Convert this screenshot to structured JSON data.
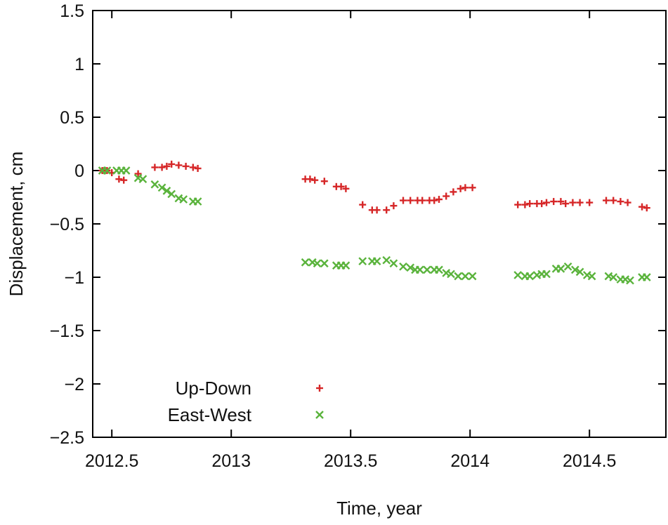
{
  "chart_data": {
    "type": "scatter",
    "title": "",
    "xlabel": "Time, year",
    "ylabel": "Displacement, cm",
    "xlim": [
      2012.42,
      2014.82
    ],
    "ylim": [
      -2.5,
      1.5
    ],
    "x_ticks": [
      2012.5,
      2013,
      2013.5,
      2014,
      2014.5
    ],
    "x_tick_labels": [
      "2012.5",
      "2013",
      "2013.5",
      "2014",
      "2014.5"
    ],
    "y_ticks": [
      1.5,
      1,
      0.5,
      0,
      -0.5,
      -1,
      -1.5,
      -2,
      -2.5
    ],
    "y_tick_labels": [
      "1.5",
      "1",
      "0.5",
      "0",
      "−0.5",
      "−1",
      "−1.5",
      "−2",
      "−2.5"
    ],
    "grid": false,
    "legend_position": "bottom-left",
    "series": [
      {
        "name": "Up-Down",
        "marker": "plus",
        "color": "#d62728",
        "points": [
          [
            2012.46,
            0.0
          ],
          [
            2012.48,
            0.0
          ],
          [
            2012.5,
            -0.02
          ],
          [
            2012.53,
            -0.08
          ],
          [
            2012.55,
            -0.09
          ],
          [
            2012.61,
            -0.03
          ],
          [
            2012.68,
            0.03
          ],
          [
            2012.71,
            0.03
          ],
          [
            2012.73,
            0.04
          ],
          [
            2012.75,
            0.06
          ],
          [
            2012.78,
            0.05
          ],
          [
            2012.81,
            0.04
          ],
          [
            2012.84,
            0.03
          ],
          [
            2012.86,
            0.02
          ],
          [
            2013.31,
            -0.08
          ],
          [
            2013.33,
            -0.08
          ],
          [
            2013.35,
            -0.09
          ],
          [
            2013.39,
            -0.1
          ],
          [
            2013.44,
            -0.15
          ],
          [
            2013.46,
            -0.15
          ],
          [
            2013.48,
            -0.17
          ],
          [
            2013.55,
            -0.32
          ],
          [
            2013.59,
            -0.37
          ],
          [
            2013.61,
            -0.37
          ],
          [
            2013.65,
            -0.37
          ],
          [
            2013.68,
            -0.33
          ],
          [
            2013.72,
            -0.28
          ],
          [
            2013.75,
            -0.28
          ],
          [
            2013.78,
            -0.28
          ],
          [
            2013.8,
            -0.28
          ],
          [
            2013.83,
            -0.28
          ],
          [
            2013.85,
            -0.28
          ],
          [
            2013.87,
            -0.27
          ],
          [
            2013.9,
            -0.24
          ],
          [
            2013.93,
            -0.2
          ],
          [
            2013.96,
            -0.17
          ],
          [
            2013.98,
            -0.16
          ],
          [
            2014.01,
            -0.16
          ],
          [
            2014.2,
            -0.32
          ],
          [
            2014.23,
            -0.32
          ],
          [
            2014.25,
            -0.31
          ],
          [
            2014.28,
            -0.31
          ],
          [
            2014.3,
            -0.31
          ],
          [
            2014.32,
            -0.3
          ],
          [
            2014.35,
            -0.29
          ],
          [
            2014.38,
            -0.29
          ],
          [
            2014.4,
            -0.31
          ],
          [
            2014.43,
            -0.3
          ],
          [
            2014.46,
            -0.3
          ],
          [
            2014.5,
            -0.3
          ],
          [
            2014.57,
            -0.28
          ],
          [
            2014.6,
            -0.28
          ],
          [
            2014.63,
            -0.29
          ],
          [
            2014.66,
            -0.3
          ],
          [
            2014.72,
            -0.34
          ],
          [
            2014.74,
            -0.35
          ]
        ]
      },
      {
        "name": "East-West",
        "marker": "cross",
        "color": "#5ab33c",
        "points": [
          [
            2012.46,
            0.0
          ],
          [
            2012.48,
            0.0
          ],
          [
            2012.52,
            0.0
          ],
          [
            2012.54,
            0.0
          ],
          [
            2012.56,
            0.0
          ],
          [
            2012.61,
            -0.07
          ],
          [
            2012.63,
            -0.08
          ],
          [
            2012.68,
            -0.13
          ],
          [
            2012.71,
            -0.16
          ],
          [
            2012.73,
            -0.19
          ],
          [
            2012.75,
            -0.22
          ],
          [
            2012.78,
            -0.26
          ],
          [
            2012.8,
            -0.27
          ],
          [
            2012.84,
            -0.29
          ],
          [
            2012.86,
            -0.29
          ],
          [
            2013.31,
            -0.86
          ],
          [
            2013.34,
            -0.86
          ],
          [
            2013.36,
            -0.87
          ],
          [
            2013.39,
            -0.87
          ],
          [
            2013.44,
            -0.89
          ],
          [
            2013.46,
            -0.89
          ],
          [
            2013.48,
            -0.89
          ],
          [
            2013.55,
            -0.85
          ],
          [
            2013.59,
            -0.85
          ],
          [
            2013.61,
            -0.85
          ],
          [
            2013.65,
            -0.84
          ],
          [
            2013.68,
            -0.87
          ],
          [
            2013.72,
            -0.9
          ],
          [
            2013.75,
            -0.91
          ],
          [
            2013.77,
            -0.93
          ],
          [
            2013.79,
            -0.93
          ],
          [
            2013.82,
            -0.93
          ],
          [
            2013.85,
            -0.93
          ],
          [
            2013.87,
            -0.93
          ],
          [
            2013.9,
            -0.96
          ],
          [
            2013.92,
            -0.97
          ],
          [
            2013.95,
            -0.99
          ],
          [
            2013.98,
            -0.99
          ],
          [
            2014.01,
            -0.99
          ],
          [
            2014.2,
            -0.98
          ],
          [
            2014.23,
            -0.99
          ],
          [
            2014.25,
            -0.99
          ],
          [
            2014.28,
            -0.98
          ],
          [
            2014.3,
            -0.97
          ],
          [
            2014.32,
            -0.97
          ],
          [
            2014.36,
            -0.92
          ],
          [
            2014.38,
            -0.92
          ],
          [
            2014.41,
            -0.9
          ],
          [
            2014.44,
            -0.93
          ],
          [
            2014.46,
            -0.95
          ],
          [
            2014.49,
            -0.98
          ],
          [
            2014.51,
            -0.99
          ],
          [
            2014.58,
            -0.99
          ],
          [
            2014.6,
            -1.0
          ],
          [
            2014.63,
            -1.02
          ],
          [
            2014.65,
            -1.02
          ],
          [
            2014.67,
            -1.03
          ],
          [
            2014.72,
            -1.0
          ],
          [
            2014.74,
            -1.0
          ]
        ]
      }
    ]
  }
}
